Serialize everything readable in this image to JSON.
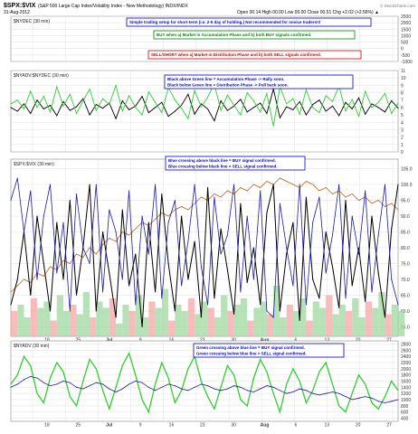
{
  "header": {
    "symbol": "$SPX:$VIX",
    "description": "(S&P 500 Large Cap Index/Volatility Index - New Methodology)  INDX/INDX",
    "date": "31-Aug-2012",
    "quote": "Open 00.14  High 00.00  Low 00.00  Close 00.51  Chg +2.02 (+2.56%) ▲",
    "watermark": "© StockCharts.com"
  },
  "annotations": {
    "setup": "Simple trading setup for short-term (i.e. 2-5 day of holding.)  Not recommended for novice traders!!!",
    "buy": "BUY when a) Market in Accumulation Phase and b) both BUY signals confirmed.",
    "sell": "SELL/SHORT when a) Market in Distribution Phase and b) both SELL signals confirmed.",
    "phase_1": "Black above Green line = Accumulation Phase -> Rally soon.",
    "phase_2": "Black below Green line = Distribution Phase -> Pull back soon.",
    "cross_1": "Blue crossing above black line = BUY signal confirmed.",
    "cross_2": "Blue crossing below black line = SELL signal confirmed.",
    "green_1": "Green crossing above blue line = BUY signal confirmed.",
    "green_2": "Green crossing below blue line = SELL signal confirmed."
  },
  "colors": {
    "green": "#33cc33",
    "black": "#000000",
    "blue": "#1a1aa6",
    "brown": "#b5651d",
    "pink_fill": "#f4a6a6",
    "green_fill": "#9fd89f",
    "grid": "#d8d8d8",
    "box_blue": "#0000cc",
    "box_green": "#008800",
    "box_red": "#cc0000"
  },
  "chart_data": [
    {
      "panel": "top",
      "title": "$NYDEC (30 min)",
      "type": "line",
      "y_ticks": [
        "2500",
        "2000",
        "1500",
        "1000",
        "500",
        "0",
        "-500",
        "-1000"
      ],
      "ylim": [
        -1000,
        2500
      ]
    },
    {
      "panel": "ratio",
      "title": "$NYADV:$NYDEC (30 min)",
      "type": "line",
      "y_ticks": [
        "11",
        "10",
        "9",
        "8",
        "7",
        "6",
        "5",
        "4",
        "3",
        "2",
        "1",
        "0"
      ],
      "ylim": [
        0,
        11
      ],
      "series": [
        {
          "values": [
            6.0,
            5.5,
            6.5,
            5.2,
            7.0,
            5.8,
            6.3,
            4.9,
            6.8,
            5.6,
            6.1,
            7.2,
            5.0,
            6.4,
            5.9,
            6.6,
            4.5,
            6.9,
            5.7,
            6.2,
            7.5,
            5.3,
            6.0,
            6.7,
            4.8,
            5.5,
            6.3,
            7.8,
            5.1,
            6.5,
            5.8,
            4.2,
            6.9,
            5.6,
            6.2,
            7.1,
            5.4,
            6.0,
            6.6,
            5.2,
            8.5,
            4.6,
            6.1,
            5.7,
            6.8,
            5.0,
            6.4,
            7.0,
            5.5,
            6.2,
            4.9,
            6.7,
            5.8,
            7.3,
            5.1,
            6.5,
            6.0,
            5.4,
            6.9,
            5.9
          ]
        },
        {
          "values": [
            6.5,
            7.0,
            5.8,
            8.2,
            6.0,
            7.5,
            5.4,
            8.8,
            6.2,
            7.8,
            5.2,
            6.9,
            8.5,
            5.6,
            7.2,
            6.4,
            9.0,
            5.5,
            7.6,
            6.0,
            5.0,
            8.1,
            6.7,
            5.3,
            8.7,
            7.0,
            5.9,
            4.5,
            8.3,
            6.1,
            7.4,
            9.2,
            5.6,
            7.7,
            6.3,
            5.0,
            8.0,
            6.9,
            5.4,
            7.9,
            3.5,
            8.8,
            6.5,
            7.2,
            5.1,
            8.4,
            6.0,
            5.3,
            7.6,
            6.8,
            8.9,
            5.5,
            7.1,
            4.8,
            8.2,
            6.0,
            6.7,
            7.9,
            5.2,
            6.6
          ]
        }
      ]
    },
    {
      "panel": "main",
      "title": "$SPX:$VIX (30 min)",
      "type": "line",
      "y_ticks": [
        "105.0",
        "100.0",
        "95.0",
        "90.0",
        "85.0",
        "80.0",
        "75.0",
        "70.0",
        "65.0",
        "60.0",
        "55.0"
      ],
      "ylim": [
        52,
        108
      ],
      "series": [
        {
          "values": [
            66,
            68,
            70,
            69,
            72,
            71,
            74,
            73,
            76,
            75,
            78,
            77,
            80,
            78,
            81,
            83,
            82,
            85,
            84,
            86,
            88,
            87,
            89,
            91,
            90,
            92,
            93,
            92,
            94,
            96,
            95,
            97,
            96,
            98,
            97,
            99,
            98,
            100,
            99,
            101,
            100,
            102,
            101,
            100,
            99,
            101,
            100,
            98,
            99,
            97,
            98,
            96,
            97,
            95,
            96,
            94,
            95,
            93,
            94,
            92
          ]
        },
        {
          "values": [
            62,
            70,
            85,
            65,
            90,
            75,
            60,
            88,
            70,
            95,
            65,
            80,
            100,
            60,
            85,
            72,
            58,
            92,
            68,
            78,
            55,
            88,
            66,
            97,
            75,
            60,
            90,
            70,
            82,
            58,
            99,
            64,
            86,
            73,
            59,
            94,
            69,
            80,
            62,
            91,
            100,
            60,
            78,
            88,
            57,
            96,
            70,
            64,
            85,
            74,
            61,
            95,
            68,
            80,
            63,
            90,
            72,
            58,
            86,
            100
          ]
        },
        {
          "values": [
            95,
            102,
            85,
            98,
            70,
            90,
            100,
            72,
            88,
            60,
            97,
            80,
            75,
            100,
            66,
            92,
            85,
            70,
            98,
            62,
            90,
            78,
            100,
            64,
            88,
            95,
            68,
            82,
            100,
            74,
            62,
            96,
            78,
            84,
            100,
            66,
            90,
            70,
            98,
            60,
            58,
            94,
            80,
            68,
            100,
            62,
            88,
            96,
            72,
            84,
            100,
            64,
            90,
            78,
            98,
            66,
            84,
            100,
            70,
            62
          ]
        }
      ],
      "fill_series": [
        {
          "values": [
            60,
            62,
            58,
            64,
            61,
            63,
            57,
            65,
            60,
            62,
            59,
            66,
            58,
            63,
            61,
            64,
            56,
            62,
            60,
            65,
            58,
            63,
            61,
            67,
            57,
            62,
            60,
            64,
            59,
            63,
            61,
            58,
            65,
            60,
            62,
            64,
            57,
            61,
            63,
            59,
            68,
            58,
            62,
            60,
            64,
            57,
            63,
            61,
            65,
            59,
            62,
            60,
            64,
            58,
            63,
            61,
            66,
            59,
            62,
            60
          ]
        }
      ],
      "x_ticks": [
        "18",
        "25",
        "Jul",
        "9",
        "16",
        "23",
        "30",
        "Aug",
        "6",
        "13",
        "20",
        "27"
      ]
    },
    {
      "panel": "bottom",
      "title": "$NYADV (30 min)",
      "type": "line",
      "y_ticks": [
        "2800",
        "2600",
        "2400",
        "2200",
        "2000",
        "1800",
        "1600",
        "1400",
        "1200",
        "1000",
        "800",
        "600",
        "400"
      ],
      "ylim": [
        300,
        2900
      ],
      "series": [
        {
          "values": [
            1500,
            1800,
            2400,
            2100,
            1200,
            900,
            1700,
            2200,
            1900,
            1100,
            800,
            1600,
            2300,
            2000,
            1300,
            700,
            1400,
            2100,
            2500,
            1800,
            1000,
            600,
            1500,
            2200,
            1700,
            900,
            1300,
            2000,
            2400,
            1600,
            1100,
            700,
            1400,
            2100,
            1800,
            1000,
            800,
            1700,
            2300,
            1900,
            1200,
            600,
            1500,
            2000,
            1600,
            900,
            1300,
            1900,
            2200,
            1500,
            800,
            600,
            1200,
            1800,
            1500,
            900,
            700,
            1100,
            1600,
            1300
          ]
        },
        {
          "values": [
            1400,
            1500,
            1650,
            1750,
            1700,
            1550,
            1450,
            1500,
            1600,
            1550,
            1400,
            1350,
            1450,
            1550,
            1500,
            1350,
            1250,
            1350,
            1500,
            1600,
            1550,
            1400,
            1300,
            1400,
            1500,
            1450,
            1350,
            1300,
            1400,
            1500,
            1450,
            1350,
            1300,
            1350,
            1450,
            1400,
            1300,
            1250,
            1350,
            1450,
            1400,
            1300,
            1200,
            1250,
            1350,
            1300,
            1200,
            1150,
            1200,
            1250,
            1200,
            1100,
            1000,
            1050,
            1100,
            1050,
            950,
            900,
            950,
            1000
          ]
        }
      ],
      "x_ticks": [
        "18",
        "25",
        "Jul",
        "9",
        "16",
        "23",
        "30",
        "Aug",
        "6",
        "13",
        "20",
        "27"
      ]
    }
  ]
}
